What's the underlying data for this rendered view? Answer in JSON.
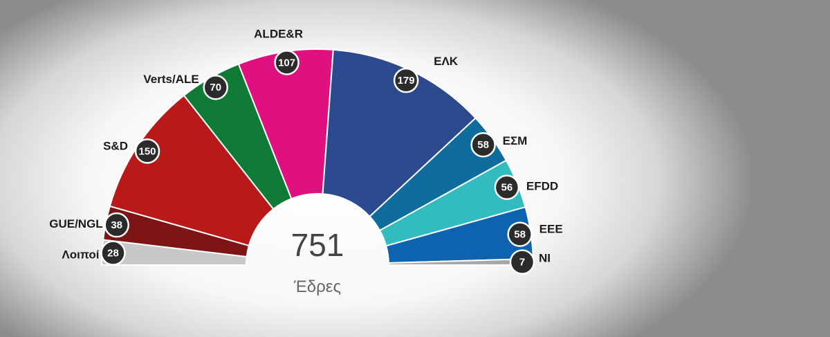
{
  "chart_data": {
    "type": "pie",
    "total": "751",
    "total_label": "Έδρες",
    "series": [
      {
        "name": "Λοιποί",
        "value": 28,
        "color": "#c8c8c8"
      },
      {
        "name": "GUE/NGL",
        "value": 38,
        "color": "#7d1515"
      },
      {
        "name": "S&D",
        "value": 150,
        "color": "#b81a1a"
      },
      {
        "name": "Verts/ALE",
        "value": 70,
        "color": "#0f7a36"
      },
      {
        "name": "ALDE&R",
        "value": 107,
        "color": "#e01080"
      },
      {
        "name": "ΕΛΚ",
        "value": 179,
        "color": "#2d4a8e"
      },
      {
        "name": "ΕΣΜ",
        "value": 58,
        "color": "#0e6d9c"
      },
      {
        "name": "EFDD",
        "value": 56,
        "color": "#32bcc0"
      },
      {
        "name": "EEE",
        "value": 58,
        "color": "#0d63b0"
      },
      {
        "name": "NI",
        "value": 7,
        "color": "#a8a8a8"
      }
    ]
  }
}
